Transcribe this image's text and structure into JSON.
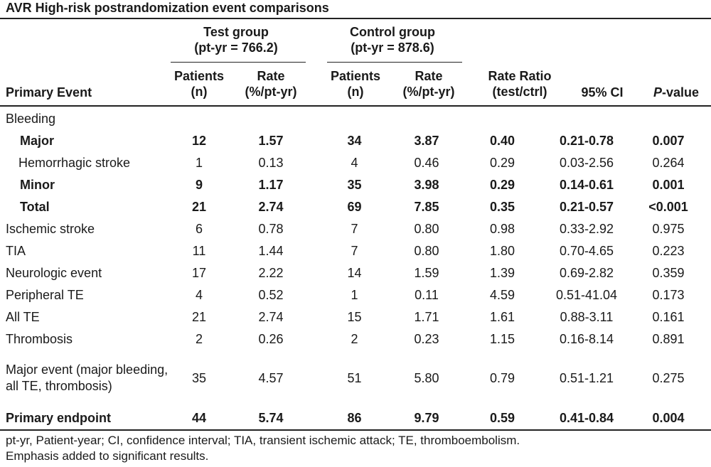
{
  "title": "AVR High-risk postrandomization event comparisons",
  "groups": {
    "test": {
      "name": "Test group",
      "ptyr": "(pt-yr = 766.2)"
    },
    "control": {
      "name": "Control group",
      "ptyr": "(pt-yr = 878.6)"
    }
  },
  "columns": {
    "event": "Primary Event",
    "patients": [
      "Patients",
      "(n)"
    ],
    "rate": [
      "Rate",
      "(%/pt-yr)"
    ],
    "ratio": [
      "Rate Ratio",
      "(test/ctrl)"
    ],
    "ci": "95% CI",
    "p_italic": "P",
    "p_rest": "-value"
  },
  "rows": [
    {
      "event": "Bleeding",
      "indent": 0,
      "bold": false,
      "values": [
        "",
        "",
        "",
        "",
        "",
        "",
        ""
      ]
    },
    {
      "event": "Major",
      "indent": 1,
      "bold": true,
      "values": [
        "12",
        "1.57",
        "34",
        "3.87",
        "0.40",
        "0.21-0.78",
        "0.007"
      ]
    },
    {
      "event": "Hemorrhagic stroke",
      "indent": 2,
      "bold": false,
      "values": [
        "1",
        "0.13",
        "4",
        "0.46",
        "0.29",
        "0.03-2.56",
        "0.264"
      ]
    },
    {
      "event": "Minor",
      "indent": 1,
      "bold": true,
      "values": [
        "9",
        "1.17",
        "35",
        "3.98",
        "0.29",
        "0.14-0.61",
        "0.001"
      ]
    },
    {
      "event": "Total",
      "indent": 1,
      "bold": true,
      "values": [
        "21",
        "2.74",
        "69",
        "7.85",
        "0.35",
        "0.21-0.57",
        "<0.001"
      ]
    },
    {
      "event": "Ischemic stroke",
      "indent": 0,
      "bold": false,
      "values": [
        "6",
        "0.78",
        "7",
        "0.80",
        "0.98",
        "0.33-2.92",
        "0.975"
      ]
    },
    {
      "event": "TIA",
      "indent": 0,
      "bold": false,
      "values": [
        "11",
        "1.44",
        "7",
        "0.80",
        "1.80",
        "0.70-4.65",
        "0.223"
      ]
    },
    {
      "event": "Neurologic event",
      "indent": 0,
      "bold": false,
      "values": [
        "17",
        "2.22",
        "14",
        "1.59",
        "1.39",
        "0.69-2.82",
        "0.359"
      ]
    },
    {
      "event": "Peripheral TE",
      "indent": 0,
      "bold": false,
      "values": [
        "4",
        "0.52",
        "1",
        "0.11",
        "4.59",
        "0.51-41.04",
        "0.173"
      ]
    },
    {
      "event": "All TE",
      "indent": 0,
      "bold": false,
      "values": [
        "21",
        "2.74",
        "15",
        "1.71",
        "1.61",
        "0.88-3.11",
        "0.161"
      ]
    },
    {
      "event": "Thrombosis",
      "indent": 0,
      "bold": false,
      "values": [
        "2",
        "0.26",
        "2",
        "0.23",
        "1.15",
        "0.16-8.14",
        "0.891"
      ]
    },
    {
      "event": "Major event (major bleeding, all TE, thrombosis)",
      "indent": 0,
      "bold": false,
      "tall": true,
      "values": [
        "35",
        "4.57",
        "51",
        "5.80",
        "0.79",
        "0.51-1.21",
        "0.275"
      ]
    },
    {
      "event": "Primary endpoint",
      "indent": 0,
      "bold": true,
      "values": [
        "44",
        "5.74",
        "86",
        "9.79",
        "0.59",
        "0.41-0.84",
        "0.004"
      ]
    }
  ],
  "footnotes": [
    "pt-yr, Patient-year; CI, confidence interval; TIA, transient ischemic attack; TE, thromboembolism.",
    "Emphasis added to significant results."
  ]
}
